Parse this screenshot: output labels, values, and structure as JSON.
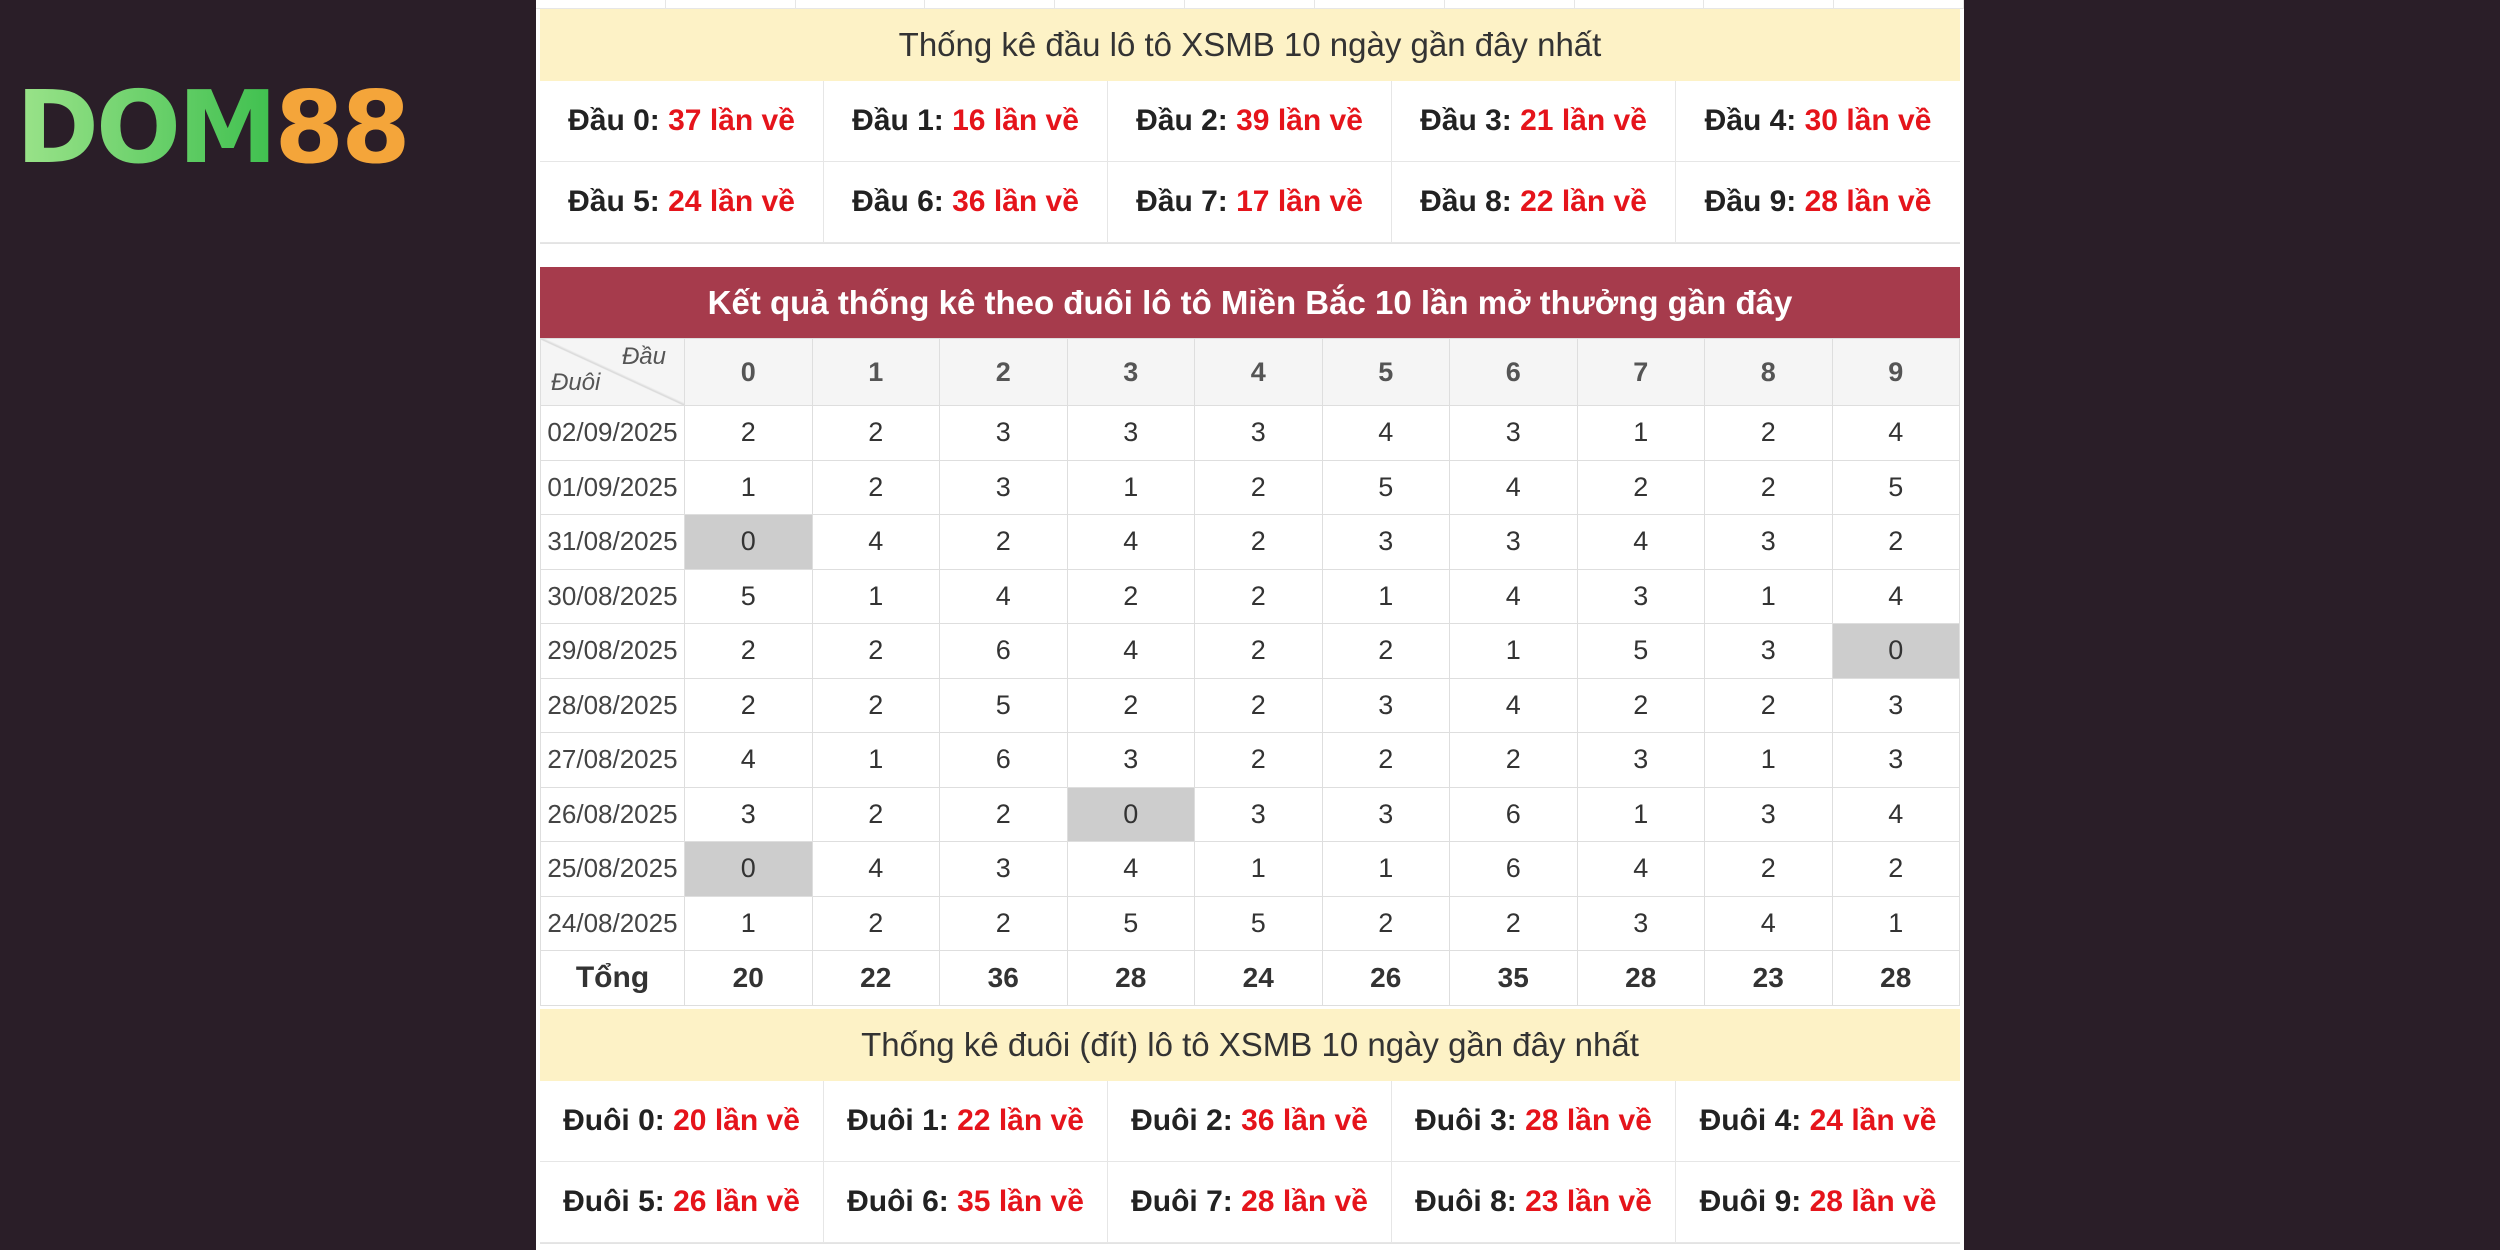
{
  "logo": {
    "part1": "DOM",
    "part2": "88"
  },
  "dau_stats": {
    "title": "Thống kê đầu lô tô XSMB 10 ngày gần đây nhất",
    "items": [
      {
        "label": "Đầu 0:",
        "value": "37 lần về"
      },
      {
        "label": "Đầu 1:",
        "value": "16 lần về"
      },
      {
        "label": "Đầu 2:",
        "value": "39 lần về"
      },
      {
        "label": "Đầu 3:",
        "value": "21 lần về"
      },
      {
        "label": "Đầu 4:",
        "value": "30 lần về"
      },
      {
        "label": "Đầu 5:",
        "value": "24 lần về"
      },
      {
        "label": "Đầu 6:",
        "value": "36 lần về"
      },
      {
        "label": "Đầu 7:",
        "value": "17 lần về"
      },
      {
        "label": "Đầu 8:",
        "value": "22 lần về"
      },
      {
        "label": "Đầu 9:",
        "value": "28 lần về"
      }
    ]
  },
  "duoi_table": {
    "header": "Kết quả thống kê theo đuôi lô tô Miền Bắc 10 lần mở thưởng gần đây",
    "corner_top": "Đầu",
    "corner_bottom": "Đuôi",
    "columns": [
      "0",
      "1",
      "2",
      "3",
      "4",
      "5",
      "6",
      "7",
      "8",
      "9"
    ],
    "rows": [
      {
        "date": "02/09/2025",
        "values": [
          "2",
          "2",
          "3",
          "3",
          "3",
          "4",
          "3",
          "1",
          "2",
          "4"
        ]
      },
      {
        "date": "01/09/2025",
        "values": [
          "1",
          "2",
          "3",
          "1",
          "2",
          "5",
          "4",
          "2",
          "2",
          "5"
        ]
      },
      {
        "date": "31/08/2025",
        "values": [
          "0",
          "4",
          "2",
          "4",
          "2",
          "3",
          "3",
          "4",
          "3",
          "2"
        ]
      },
      {
        "date": "30/08/2025",
        "values": [
          "5",
          "1",
          "4",
          "2",
          "2",
          "1",
          "4",
          "3",
          "1",
          "4"
        ]
      },
      {
        "date": "29/08/2025",
        "values": [
          "2",
          "2",
          "6",
          "4",
          "2",
          "2",
          "1",
          "5",
          "3",
          "0"
        ]
      },
      {
        "date": "28/08/2025",
        "values": [
          "2",
          "2",
          "5",
          "2",
          "2",
          "3",
          "4",
          "2",
          "2",
          "3"
        ]
      },
      {
        "date": "27/08/2025",
        "values": [
          "4",
          "1",
          "6",
          "3",
          "2",
          "2",
          "2",
          "3",
          "1",
          "3"
        ]
      },
      {
        "date": "26/08/2025",
        "values": [
          "3",
          "2",
          "2",
          "0",
          "3",
          "3",
          "6",
          "1",
          "3",
          "4"
        ]
      },
      {
        "date": "25/08/2025",
        "values": [
          "0",
          "4",
          "3",
          "4",
          "1",
          "1",
          "6",
          "4",
          "2",
          "2"
        ]
      },
      {
        "date": "24/08/2025",
        "values": [
          "1",
          "2",
          "2",
          "5",
          "5",
          "2",
          "2",
          "3",
          "4",
          "1"
        ]
      }
    ],
    "total_label": "Tổng",
    "totals": [
      "20",
      "22",
      "36",
      "28",
      "24",
      "26",
      "35",
      "28",
      "23",
      "28"
    ]
  },
  "duoi_stats": {
    "title": "Thống kê đuôi (đít) lô tô XSMB 10 ngày gần đây nhất",
    "items": [
      {
        "label": "Đuôi 0:",
        "value": "20 lần về"
      },
      {
        "label": "Đuôi 1:",
        "value": "22 lần về"
      },
      {
        "label": "Đuôi 2:",
        "value": "36 lần về"
      },
      {
        "label": "Đuôi 3:",
        "value": "28 lần về"
      },
      {
        "label": "Đuôi 4:",
        "value": "24 lần về"
      },
      {
        "label": "Đuôi 5:",
        "value": "26 lần về"
      },
      {
        "label": "Đuôi 6:",
        "value": "35 lần về"
      },
      {
        "label": "Đuôi 7:",
        "value": "28 lần về"
      },
      {
        "label": "Đuôi 8:",
        "value": "23 lần về"
      },
      {
        "label": "Đuôi 9:",
        "value": "28 lần về"
      }
    ]
  },
  "colors": {
    "accent_red": "#e5141b",
    "header_bg": "#a63b4c",
    "title_bg": "#fdf2c6",
    "zero_bg": "#cdcdcd"
  }
}
